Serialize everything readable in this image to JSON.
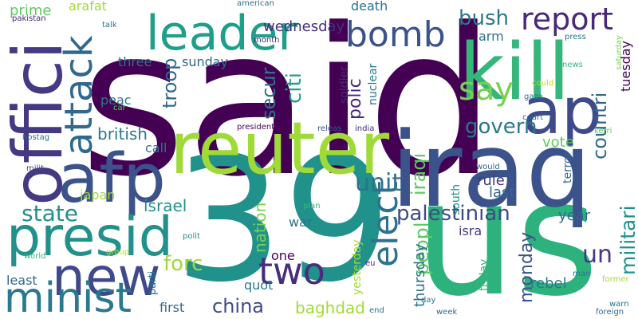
{
  "palette": {
    "dark_purple": "#440154",
    "indigo": "#3b528b",
    "blue": "#31688e",
    "teal": "#21918c",
    "green": "#35b779",
    "lime": "#a0da39",
    "yellow": "#fde725"
  },
  "words": [
    {
      "text": "said",
      "color": "#440154"
    },
    {
      "text": "39",
      "color": "#21918c"
    },
    {
      "text": "us",
      "color": "#2db27d"
    },
    {
      "text": "iraq",
      "color": "#3b528b"
    },
    {
      "text": "reuter",
      "color": "#a0da39"
    },
    {
      "text": "kill",
      "color": "#35b779"
    },
    {
      "text": "ap",
      "color": "#3e4a89"
    },
    {
      "text": "offici",
      "color": "#443983"
    },
    {
      "text": "afp",
      "color": "#3b528b"
    },
    {
      "text": "presid",
      "color": "#21918c"
    },
    {
      "text": "new",
      "color": "#3e4a89"
    },
    {
      "text": "minist",
      "color": "#2a788e"
    },
    {
      "text": "leader",
      "color": "#1f9e89"
    },
    {
      "text": "attack",
      "color": "#31688e"
    },
    {
      "text": "bomb",
      "color": "#3b528b"
    },
    {
      "text": "report",
      "color": "#482878"
    },
    {
      "text": "say",
      "color": "#7ad151"
    },
    {
      "text": "govern",
      "color": "#2a788e"
    },
    {
      "text": "elect",
      "color": "#2c728e"
    },
    {
      "text": "two",
      "color": "#472d7b"
    },
    {
      "text": "palestinian",
      "color": "#3e4a89"
    },
    {
      "text": "militari",
      "color": "#21918c"
    },
    {
      "text": "countri",
      "color": "#31688e"
    },
    {
      "text": "secur",
      "color": "#2c728e"
    },
    {
      "text": "citi",
      "color": "#1f9e89"
    },
    {
      "text": "bush",
      "color": "#2a788e"
    },
    {
      "text": "unit",
      "color": "#2c728e"
    },
    {
      "text": "iraqi",
      "color": "#5ec962"
    },
    {
      "text": "state",
      "color": "#21918c"
    },
    {
      "text": "forc",
      "color": "#a0da39"
    },
    {
      "text": "nation",
      "color": "#7ad151"
    },
    {
      "text": "china",
      "color": "#3e4a89"
    },
    {
      "text": "un",
      "color": "#443983"
    },
    {
      "text": "peopl",
      "color": "#5ec962"
    },
    {
      "text": "monday",
      "color": "#3b528b"
    },
    {
      "text": "polic",
      "color": "#482878"
    },
    {
      "text": "troop",
      "color": "#31688e"
    },
    {
      "text": "tuesday",
      "color": "#440154"
    },
    {
      "text": "wednesday",
      "color": "#472d7b"
    },
    {
      "text": "british",
      "color": "#2a788e"
    },
    {
      "text": "year",
      "color": "#31688e"
    },
    {
      "text": "israel",
      "color": "#21918c"
    },
    {
      "text": "vote",
      "color": "#5ec962"
    },
    {
      "text": "rule",
      "color": "#443983"
    },
    {
      "text": "last",
      "color": "#31688e"
    },
    {
      "text": "baghdad",
      "color": "#a0da39"
    },
    {
      "text": "thursday",
      "color": "#2c728e"
    },
    {
      "text": "rebel",
      "color": "#2a788e"
    },
    {
      "text": "least",
      "color": "#31688e"
    },
    {
      "text": "sunday",
      "color": "#31688e"
    },
    {
      "text": "three",
      "color": "#2c728e"
    },
    {
      "text": "arm",
      "color": "#2c728e"
    },
    {
      "text": "call",
      "color": "#2c728e"
    },
    {
      "text": "peac",
      "color": "#2a788e"
    },
    {
      "text": "japan",
      "color": "#a0da39"
    },
    {
      "text": "war",
      "color": "#2c728e"
    },
    {
      "text": "one",
      "color": "#440154"
    },
    {
      "text": "quot",
      "color": "#2a788e"
    },
    {
      "text": "first",
      "color": "#31688e"
    },
    {
      "text": "isra",
      "color": "#443983"
    },
    {
      "text": "prime",
      "color": "#5ec962"
    },
    {
      "text": "arafat",
      "color": "#a0da39"
    },
    {
      "text": "death",
      "color": "#2c728e"
    },
    {
      "text": "soldier",
      "color": "#482878"
    },
    {
      "text": "nuclear",
      "color": "#2a788e"
    },
    {
      "text": "yesterday",
      "color": "#a0da39"
    },
    {
      "text": "friday",
      "color": "#35b779"
    },
    {
      "text": "parti",
      "color": "#2c728e"
    },
    {
      "text": "south",
      "color": "#21918c"
    },
    {
      "text": "terror",
      "color": "#31688e"
    },
    {
      "text": "american",
      "color": "#2c728e"
    },
    {
      "text": "month",
      "color": "#482878"
    },
    {
      "text": "talk",
      "color": "#2c728e"
    },
    {
      "text": "pakistan",
      "color": "#482878"
    },
    {
      "text": "presidenti",
      "color": "#440154"
    },
    {
      "text": "releas",
      "color": "#3b528b"
    },
    {
      "text": "india",
      "color": "#472d7b"
    },
    {
      "text": "hostag",
      "color": "#2c728e"
    },
    {
      "text": "milit",
      "color": "#3e4a89"
    },
    {
      "text": "car",
      "color": "#5ec962"
    },
    {
      "text": "could",
      "color": "#bddf26"
    },
    {
      "text": "gaza",
      "color": "#2c728e"
    },
    {
      "text": "court",
      "color": "#2c728e"
    },
    {
      "text": "kerri",
      "color": "#5ec962"
    },
    {
      "text": "would",
      "color": "#31688e"
    },
    {
      "text": "press",
      "color": "#2a788e"
    },
    {
      "text": "saturday",
      "color": "#7ad151"
    },
    {
      "text": "news",
      "color": "#35b779"
    },
    {
      "text": "polit",
      "color": "#21918c"
    },
    {
      "text": "plan",
      "color": "#35b779"
    },
    {
      "text": "group",
      "color": "#bddf26"
    },
    {
      "text": "world",
      "color": "#35b779"
    },
    {
      "text": "eu",
      "color": "#482878"
    },
    {
      "text": "end",
      "color": "#2c728e"
    },
    {
      "text": "day",
      "color": "#2c728e"
    },
    {
      "text": "week",
      "color": "#31688e"
    },
    {
      "text": "man",
      "color": "#2c728e"
    },
    {
      "text": "former",
      "color": "#a0da39"
    },
    {
      "text": "warn",
      "color": "#2c728e"
    },
    {
      "text": "foreign",
      "color": "#31688e"
    }
  ]
}
